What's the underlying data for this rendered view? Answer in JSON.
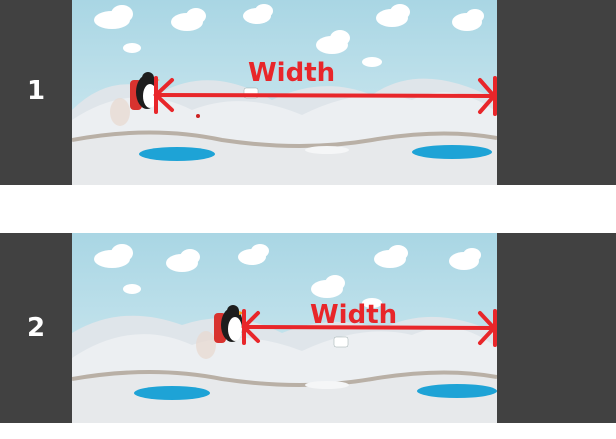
{
  "panels": [
    {
      "number": "1",
      "measure_label": "Width"
    },
    {
      "number": "2",
      "measure_label": "Width"
    }
  ],
  "colors": {
    "frame": "#414141",
    "sky": "#bfe1ea",
    "snow": "#e7e9eb",
    "water": "#1ea3d6",
    "arrow": "#e8262a"
  },
  "icons": [
    "cloud-icon",
    "penguin-jetpack-icon",
    "double-arrow-icon"
  ]
}
